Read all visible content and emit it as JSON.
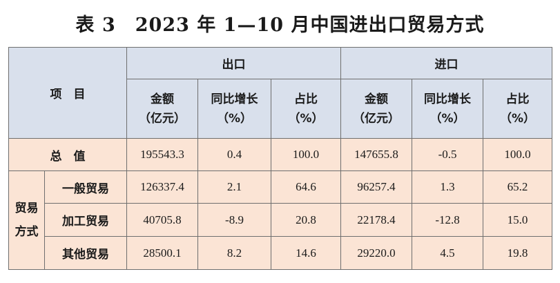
{
  "title": "表 3　2023 年 1—10 月中国进出口贸易方式",
  "header": {
    "item": "项　目",
    "export": "出口",
    "import": "进口",
    "amount": "金额",
    "amount_unit": "（亿元）",
    "yoy": "同比增长",
    "yoy_unit": "（%）",
    "share": "占比",
    "share_unit": "（%）"
  },
  "total": {
    "label": "总　值",
    "values": [
      "195543.3",
      "0.4",
      "100.0",
      "147655.8",
      "-0.5",
      "100.0"
    ]
  },
  "group": {
    "label_line1": "贸易",
    "label_line2": "方式"
  },
  "rows": [
    {
      "label": "一般贸易",
      "values": [
        "126337.4",
        "2.1",
        "64.6",
        "96257.4",
        "1.3",
        "65.2"
      ]
    },
    {
      "label": "加工贸易",
      "values": [
        "40705.8",
        "-8.9",
        "20.8",
        "22178.4",
        "-12.8",
        "15.0"
      ]
    },
    {
      "label": "其他贸易",
      "values": [
        "28500.1",
        "8.2",
        "14.6",
        "29220.0",
        "4.5",
        "19.8"
      ]
    }
  ],
  "colors": {
    "header_bg": "#d9e0ec",
    "body_bg": "#fbe4d5",
    "border": "#6e6e6e"
  }
}
